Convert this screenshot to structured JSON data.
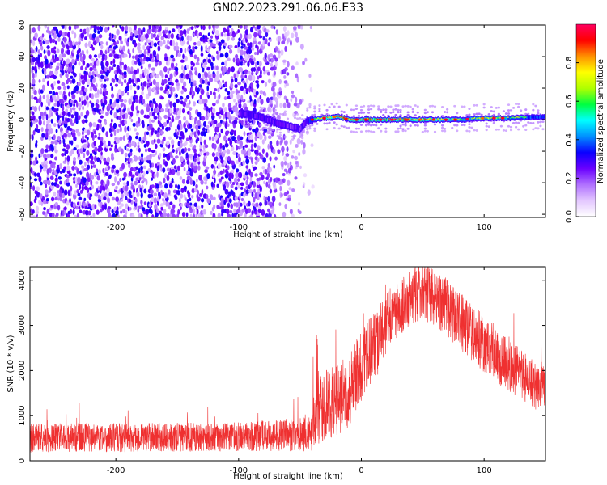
{
  "figure_title": "GN02.2023.291.06.06.E33",
  "colors": {
    "snr_line": "#ef3030",
    "axis": "#000000",
    "spectrogram_background": "#ffffff",
    "colormap": [
      "#ffffff",
      "#e3c7ff",
      "#b070ff",
      "#6a00ff",
      "#0a00ff",
      "#0090ff",
      "#00ffff",
      "#00ff40",
      "#b0ff00",
      "#ffff00",
      "#ff9000",
      "#ff0000",
      "#ff0060"
    ]
  },
  "chart_data": [
    {
      "type": "heatmap",
      "title": "",
      "xlabel": "Height of straight line (km)",
      "ylabel": "Frequency (Hz)",
      "xlim": [
        -270,
        150
      ],
      "ylim": [
        -62,
        60
      ],
      "x_ticks": [
        -200,
        -100,
        0,
        100
      ],
      "x_tick_labels": [
        "-200",
        "-100",
        "0",
        "100"
      ],
      "y_ticks": [
        60,
        40,
        20,
        0,
        -20,
        -40,
        -60
      ],
      "y_tick_labels": [
        "60",
        "40",
        "20",
        "0",
        "-20",
        "-40",
        "-60"
      ],
      "colorbar": {
        "label": "Normalized spectral amplitude",
        "range": [
          0,
          1
        ],
        "ticks": [
          0.0,
          0.2,
          0.4,
          0.6,
          0.8
        ],
        "tick_labels": [
          "0.0",
          "0.2",
          "0.4",
          "0.6",
          "0.8"
        ]
      },
      "description_regions": [
        {
          "x_range": [
            -270,
            -55
          ],
          "pattern": "broadband noise",
          "amplitude": 0.15
        },
        {
          "x_range": [
            -100,
            -40
          ],
          "pattern": "weak tone near 0 Hz, slightly negative drift",
          "amplitude": 0.35
        },
        {
          "x_range": [
            -40,
            150
          ],
          "pattern": "strong narrow tone at 0 Hz",
          "amplitude": 0.9
        }
      ],
      "ridge": {
        "x": [
          -100,
          -90,
          -80,
          -70,
          -60,
          -50,
          -45,
          -40,
          -30,
          -20,
          -10,
          0,
          20,
          40,
          60,
          80,
          100,
          120,
          150
        ],
        "freq": [
          4,
          3,
          1,
          -2,
          -4,
          -6,
          -1,
          0,
          1,
          2,
          0,
          0,
          0,
          0,
          0,
          0,
          1,
          1,
          2
        ],
        "amplitude": [
          0.35,
          0.4,
          0.4,
          0.38,
          0.36,
          0.35,
          0.4,
          0.6,
          0.8,
          0.85,
          0.85,
          0.9,
          0.9,
          0.85,
          0.8,
          0.65,
          0.7,
          0.65,
          0.55
        ]
      }
    },
    {
      "type": "line",
      "title": "",
      "xlabel": "Height of straight line (km)",
      "ylabel": "SNR (10 * v/v)",
      "xlim": [
        -270,
        150
      ],
      "ylim": [
        0,
        4300
      ],
      "x_ticks": [
        -200,
        -100,
        0,
        100
      ],
      "x_tick_labels": [
        "-200",
        "-100",
        "0",
        "100"
      ],
      "y_ticks": [
        0,
        1000,
        2000,
        3000,
        4000
      ],
      "y_tick_labels": [
        "0",
        "1000",
        "2000",
        "3000",
        "4000"
      ],
      "series": [
        {
          "envelope": {
            "x": [
              -270,
              -230,
              -200,
              -150,
              -100,
              -60,
              -40,
              -35,
              -30,
              -20,
              -10,
              0,
              10,
              20,
              30,
              40,
              50,
              60,
              70,
              80,
              90,
              100,
              110,
              120,
              130,
              140,
              150
            ],
            "center": [
              500,
              520,
              510,
              520,
              530,
              570,
              600,
              1100,
              1200,
              1350,
              1550,
              2100,
              2500,
              3000,
              3400,
              3600,
              3750,
              3600,
              3400,
              3100,
              2850,
              2600,
              2350,
              2150,
              1900,
              1700,
              1600
            ],
            "spread": [
              400,
              400,
              400,
              400,
              400,
              450,
              500,
              900,
              1000,
              1000,
              1000,
              1000,
              1000,
              900,
              800,
              800,
              800,
              800,
              800,
              800,
              800,
              800,
              800,
              800,
              700,
              700,
              600
            ]
          }
        }
      ]
    }
  ]
}
